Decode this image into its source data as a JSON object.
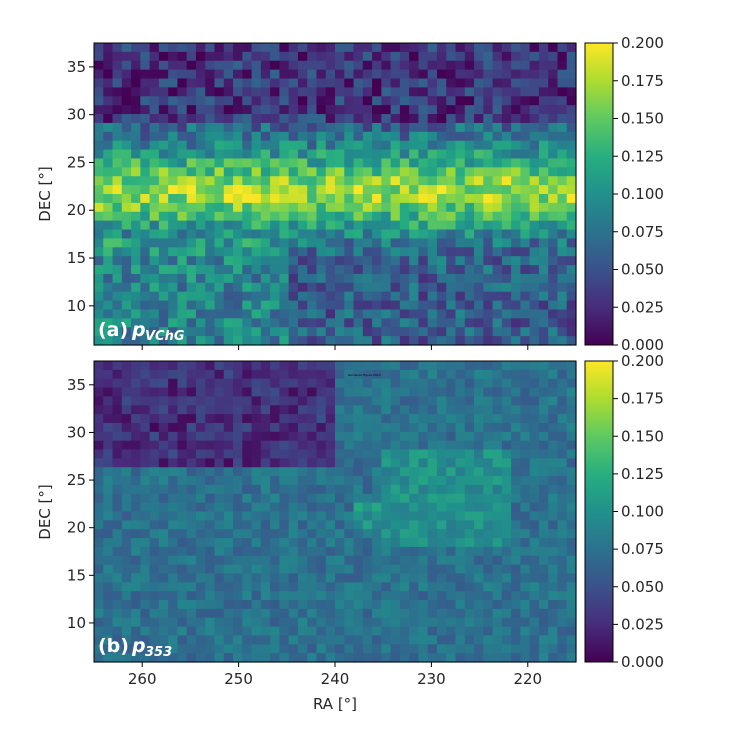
{
  "chart_data": [
    {
      "type": "heatmap",
      "panel_label": "(a)",
      "panel_symbol": "p",
      "panel_subscript": "VChG",
      "xlabel": "",
      "ylabel": "DEC [°]",
      "xlim": [
        265,
        215
      ],
      "ylim": [
        5.9,
        37.5
      ],
      "x_ticks": [
        260,
        250,
        240,
        230,
        220
      ],
      "y_ticks": [
        10,
        15,
        20,
        25,
        30,
        35
      ],
      "colorbar": {
        "min": 0.0,
        "max": 0.2,
        "ticks": [
          "0.000",
          "0.025",
          "0.050",
          "0.075",
          "0.100",
          "0.125",
          "0.150",
          "0.175",
          "0.200"
        ],
        "colormap": "viridis"
      },
      "grid": false,
      "description_of_values": "Polarization fraction map; high values (0.15–0.20) in a band at DEC 17–28 across RA 265–215; lower values (0.02–0.07) near DEC 30–37."
    },
    {
      "type": "heatmap",
      "panel_label": "(b)",
      "panel_symbol": "p",
      "panel_subscript": "353",
      "xlabel": "RA [°]",
      "ylabel": "DEC [°]",
      "xlim": [
        265,
        215
      ],
      "ylim": [
        5.9,
        37.5
      ],
      "x_ticks": [
        260,
        250,
        240,
        230,
        220
      ],
      "y_ticks": [
        10,
        15,
        20,
        25,
        30,
        35
      ],
      "colorbar": {
        "min": 0.0,
        "max": 0.2,
        "ticks": [
          "0.000",
          "0.025",
          "0.050",
          "0.075",
          "0.100",
          "0.125",
          "0.150",
          "0.175",
          "0.200"
        ],
        "colormap": "viridis"
      },
      "grid": false,
      "description_of_values": "Smoother map with values mostly 0.05–0.10; darkest (0.01–0.03) at top-left (RA 245–265, DEC 28–37); brightest (~0.12–0.13) near RA 230, DEC 22–27."
    }
  ],
  "note_text": "Rendered figure 2023"
}
